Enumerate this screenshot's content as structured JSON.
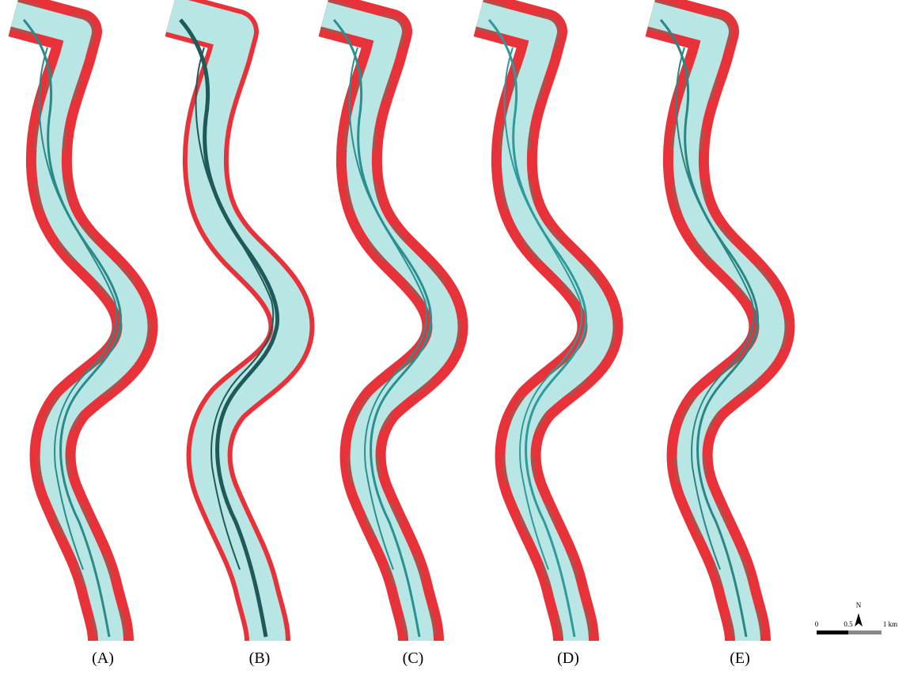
{
  "panels": [
    {
      "label": "(A)"
    },
    {
      "label": "(B)"
    },
    {
      "label": "(C)"
    },
    {
      "label": "(D)"
    },
    {
      "label": "(E)"
    }
  ],
  "north_arrow": {
    "label": "N"
  },
  "scale_bar": {
    "ticks": [
      "0",
      "0.5",
      "1 km"
    ]
  }
}
